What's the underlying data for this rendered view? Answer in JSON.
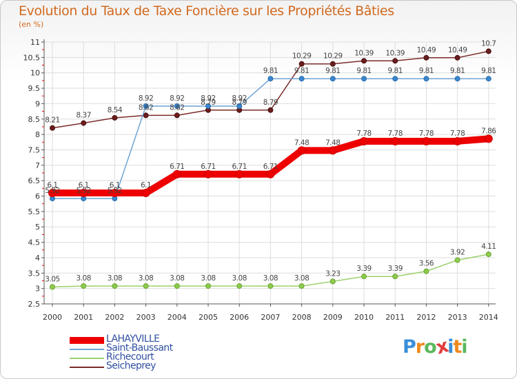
{
  "title": "Evolution du Taux de Taxe Foncière sur les Propriétés Bâties",
  "unit": "(en %)",
  "logo": {
    "text": "Proxiti",
    "colors": [
      "#3a8fd9",
      "#f08a1c",
      "#5cb85c",
      "#e03c3c",
      "#3a8fd9",
      "#f08a1c",
      "#5cb85c"
    ]
  },
  "chart_data": {
    "type": "line",
    "title": "Evolution du Taux de Taxe Foncière sur les Propriétés Bâties",
    "ylabel": "(en %)",
    "xlabel": "",
    "x": [
      "2000",
      "2001",
      "2002",
      "2003",
      "2004",
      "2005",
      "2006",
      "2007",
      "2008",
      "2009",
      "2010",
      "2011",
      "2012",
      "2013",
      "2014"
    ],
    "ylim": [
      2.5,
      11
    ],
    "yticks": [
      "2.5",
      "3",
      "3.5",
      "4",
      "4.5",
      "5",
      "5.5",
      "6",
      "6.5",
      "7",
      "7.5",
      "8",
      "8.5",
      "9",
      "9.5",
      "10",
      "10.5",
      "11"
    ],
    "grid": true,
    "legend": "bottom-left",
    "series": [
      {
        "name": "LAHAYVILLE",
        "color": "#ee0000",
        "values": [
          6.1,
          6.1,
          6.1,
          6.1,
          6.71,
          6.71,
          6.71,
          6.71,
          7.48,
          7.48,
          7.78,
          7.78,
          7.78,
          7.78,
          7.86
        ],
        "labels": [
          "6.1",
          "6.1",
          "6.1",
          "6.1",
          "6.71",
          "6.71",
          "6.71",
          "6.71",
          "7.48",
          "7.48",
          "7.78",
          "7.78",
          "7.78",
          "7.78",
          "7.86"
        ]
      },
      {
        "name": "Saint-Baussant",
        "color": "#6ea4d6",
        "values": [
          5.92,
          5.92,
          5.92,
          8.92,
          8.92,
          8.92,
          8.92,
          9.81,
          9.81,
          9.81,
          9.81,
          9.81,
          9.81,
          9.81,
          9.81
        ],
        "labels": [
          "5.92",
          "5.92",
          "5.92",
          "8.92",
          "8.92",
          "8.92",
          "8.92",
          "9.81",
          "9.81",
          "9.81",
          "9.81",
          "9.81",
          "9.81",
          "9.81",
          "9.81"
        ]
      },
      {
        "name": "Richecourt",
        "color": "#9ad06a",
        "values": [
          3.05,
          3.08,
          3.08,
          3.08,
          3.08,
          3.08,
          3.08,
          3.08,
          3.08,
          3.23,
          3.39,
          3.39,
          3.56,
          3.92,
          4.11
        ],
        "labels": [
          "3.05",
          "3.08",
          "3.08",
          "3.08",
          "3.08",
          "3.08",
          "3.08",
          "3.08",
          "3.08",
          "3.23",
          "3.39",
          "3.39",
          "3.56",
          "3.92",
          "4.11"
        ]
      },
      {
        "name": "Seicheprey",
        "color": "#7a2a2a",
        "values": [
          8.21,
          8.37,
          8.54,
          8.62,
          8.62,
          8.79,
          8.79,
          8.79,
          10.29,
          10.29,
          10.39,
          10.39,
          10.49,
          10.49,
          10.7
        ],
        "labels": [
          "8.21",
          "8.37",
          "8.54",
          "8.62",
          "8.62",
          "8.79",
          "8.79",
          "8.79",
          "10.29",
          "10.29",
          "10.39",
          "10.39",
          "10.49",
          "10.49",
          "10.7"
        ]
      }
    ]
  }
}
